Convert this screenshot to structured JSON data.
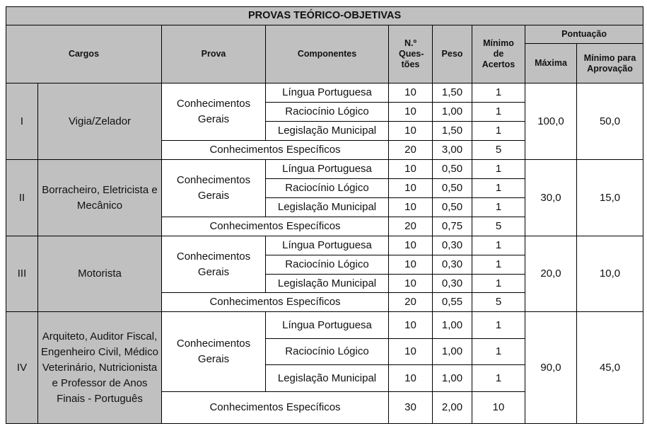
{
  "header": {
    "title": "PROVAS TEÓRICO-OBJETIVAS",
    "cargos": "Cargos",
    "prova": "Prova",
    "componentes": "Componentes",
    "questoes": "N.º Ques-tões",
    "peso": "Peso",
    "minimo_acertos": "Mínimo de Acertos",
    "pontuacao": "Pontuação",
    "maxima": "Máxima",
    "minimo_aprovacao": "Mínimo para Aprovação"
  },
  "groups": [
    {
      "roman": "I",
      "cargo": "Vigia/Zelador",
      "prova": "Conhecimentos Gerais",
      "rows": [
        {
          "comp": "Língua Portuguesa",
          "q": "10",
          "peso": "1,50",
          "min": "1"
        },
        {
          "comp": "Raciocínio Lógico",
          "q": "10",
          "peso": "1,00",
          "min": "1"
        },
        {
          "comp": "Legislação Municipal",
          "q": "10",
          "peso": "1,50",
          "min": "1"
        },
        {
          "comp": "Conhecimentos Específicos",
          "q": "20",
          "peso": "3,00",
          "min": "5"
        }
      ],
      "maxima": "100,0",
      "minimo": "50,0"
    },
    {
      "roman": "II",
      "cargo": "Borracheiro, Eletricista e Mecânico",
      "prova": "Conhecimentos Gerais",
      "rows": [
        {
          "comp": "Língua Portuguesa",
          "q": "10",
          "peso": "0,50",
          "min": "1"
        },
        {
          "comp": "Raciocínio Lógico",
          "q": "10",
          "peso": "0,50",
          "min": "1"
        },
        {
          "comp": "Legislação Municipal",
          "q": "10",
          "peso": "0,50",
          "min": "1"
        },
        {
          "comp": "Conhecimentos Específicos",
          "q": "20",
          "peso": "0,75",
          "min": "5"
        }
      ],
      "maxima": "30,0",
      "minimo": "15,0"
    },
    {
      "roman": "III",
      "cargo": "Motorista",
      "prova": "Conhecimentos Gerais",
      "rows": [
        {
          "comp": "Língua Portuguesa",
          "q": "10",
          "peso": "0,30",
          "min": "1"
        },
        {
          "comp": "Raciocínio Lógico",
          "q": "10",
          "peso": "0,30",
          "min": "1"
        },
        {
          "comp": "Legislação Municipal",
          "q": "10",
          "peso": "0,30",
          "min": "1"
        },
        {
          "comp": "Conhecimentos Específicos",
          "q": "20",
          "peso": "0,55",
          "min": "5"
        }
      ],
      "maxima": "20,0",
      "minimo": "10,0"
    },
    {
      "roman": "IV",
      "cargo": "Arquiteto, Auditor Fiscal, Engenheiro Civil, Médico Veterinário, Nutricionista e Professor de Anos Finais - Português",
      "prova": "Conhecimentos Gerais",
      "rows": [
        {
          "comp": "Língua Portuguesa",
          "q": "10",
          "peso": "1,00",
          "min": "1"
        },
        {
          "comp": "Raciocínio Lógico",
          "q": "10",
          "peso": "1,00",
          "min": "1"
        },
        {
          "comp": "Legislação Municipal",
          "q": "10",
          "peso": "1,00",
          "min": "1"
        },
        {
          "comp": "Conhecimentos Específicos",
          "q": "30",
          "peso": "2,00",
          "min": "10"
        }
      ],
      "maxima": "90,0",
      "minimo": "45,0"
    }
  ]
}
